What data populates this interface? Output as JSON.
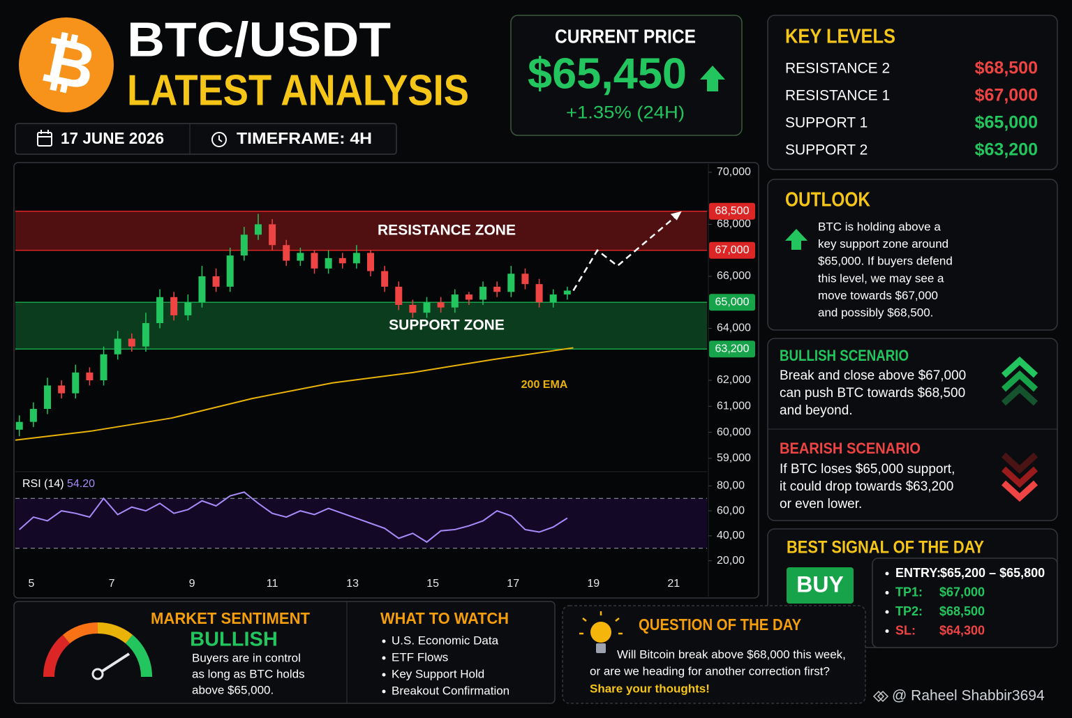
{
  "header": {
    "logo": "₿",
    "title": "BTC/USDT",
    "subtitle": "LATEST ANALYSIS",
    "date": "17 JUNE 2026",
    "timeframe": "TIMEFRAME: 4H"
  },
  "price": {
    "label": "CURRENT PRICE",
    "value": "$65,450",
    "change": "+1.35% (24H)"
  },
  "key_levels": {
    "title": "KEY LEVELS",
    "rows": [
      {
        "label": "RESISTANCE 2",
        "value": "$68,500",
        "color": "#ef4444"
      },
      {
        "label": "RESISTANCE 1",
        "value": "$67,000",
        "color": "#ef4444"
      },
      {
        "label": "SUPPORT 1",
        "value": "$65,000",
        "color": "#22c55e"
      },
      {
        "label": "SUPPORT 2",
        "value": "$63,200",
        "color": "#22c55e"
      }
    ]
  },
  "outlook": {
    "title": "OUTLOOK",
    "lines": [
      "BTC is holding above a",
      "key support zone around",
      "$65,000. If buyers defend",
      "this level, we may see a",
      "move towards $67,000",
      "and possibly $68,500."
    ]
  },
  "bullish": {
    "title": "BULLISH SCENARIO",
    "lines": [
      "Break and close above $67,000",
      "can push BTC towards $68,500",
      "and beyond."
    ]
  },
  "bearish": {
    "title": "BEARISH SCENARIO",
    "lines": [
      "If BTC loses $65,000 support,",
      "it could drop towards $63,200",
      "or even lower."
    ]
  },
  "signal": {
    "title": "BEST SIGNAL OF THE DAY",
    "action": "BUY",
    "items": [
      {
        "label": "ENTRY:",
        "value": "$65,200 – $65,800",
        "color": "#ffffff"
      },
      {
        "label": "TP1:",
        "value": "$67,000",
        "color": "#22c55e"
      },
      {
        "label": "TP2:",
        "value": "$68,500",
        "color": "#22c55e"
      },
      {
        "label": "SL:",
        "value": "$64,300",
        "color": "#ef4444"
      }
    ]
  },
  "sentiment": {
    "title": "MARKET SENTIMENT",
    "value": "BULLISH",
    "lines": [
      "Buyers are in control",
      "as long as BTC holds",
      "above $65,000."
    ]
  },
  "watch": {
    "title": "WHAT TO WATCH",
    "items": [
      "U.S. Economic Data",
      "ETF Flows",
      "Key Support Hold",
      "Breakout Confirmation"
    ]
  },
  "question": {
    "title": "QUESTION OF THE DAY",
    "lines": [
      "Will Bitcoin break above $68,000 this week,",
      "or are we heading for another correction first?"
    ],
    "cta": "Share your thoughts!"
  },
  "watermark": "@ Raheel Shabbir3694",
  "chart_data": {
    "type": "candlestick",
    "up_color": "#22c55e",
    "down_color": "#ef4444",
    "xlim": [
      4.6,
      21.83
    ],
    "xticks": [
      5,
      7,
      9,
      11,
      13,
      15,
      17,
      19,
      21
    ],
    "ylim": [
      58700,
      70400
    ],
    "yticks": [
      {
        "value": 70000,
        "label": "70,000"
      },
      {
        "value": 68000,
        "label": "68,000"
      },
      {
        "value": 66000,
        "label": "66,000"
      },
      {
        "value": 64000,
        "label": "64,000"
      },
      {
        "value": 62000,
        "label": "62,000"
      },
      {
        "value": 61000,
        "label": "61,000"
      },
      {
        "value": 60000,
        "label": "60,000"
      },
      {
        "value": 59000,
        "label": "59,000"
      }
    ],
    "levels": [
      {
        "value": 68500,
        "label": "68,500",
        "color": "#dc2626"
      },
      {
        "value": 67000,
        "label": "67,000",
        "color": "#dc2626"
      },
      {
        "value": 65000,
        "label": "65,000",
        "color": "#16a34a"
      },
      {
        "value": 63200,
        "label": "63,200",
        "color": "#16a34a"
      }
    ],
    "zones": [
      {
        "name": "RESISTANCE ZONE",
        "from": 67000,
        "to": 68500,
        "color": "#dc2626"
      },
      {
        "name": "SUPPORT ZONE",
        "from": 63200,
        "to": 65000,
        "color": "#16a34a"
      }
    ],
    "x": [
      4.7,
      5.05,
      5.4,
      5.75,
      6.1,
      6.45,
      6.8,
      7.15,
      7.5,
      7.85,
      8.2,
      8.55,
      8.9,
      9.25,
      9.6,
      9.95,
      10.3,
      10.65,
      11.0,
      11.35,
      11.7,
      12.05,
      12.4,
      12.75,
      13.1,
      13.45,
      13.8,
      14.15,
      14.5,
      14.85,
      15.2,
      15.55,
      15.9,
      16.25,
      16.6,
      16.95,
      17.3,
      17.65,
      18.0,
      18.35
    ],
    "open": [
      60100,
      60400,
      60900,
      61800,
      61500,
      62300,
      62000,
      63000,
      63600,
      63300,
      64200,
      65200,
      64500,
      65000,
      66000,
      65600,
      66800,
      67600,
      68000,
      67200,
      66600,
      66900,
      66300,
      66700,
      66500,
      66900,
      66200,
      65600,
      64900,
      64600,
      65000,
      64800,
      65300,
      65100,
      65600,
      65400,
      66100,
      65700,
      65000,
      65300
    ],
    "high": [
      60650,
      61150,
      62100,
      62000,
      62600,
      62500,
      63300,
      63900,
      63800,
      64600,
      65500,
      65400,
      65300,
      66400,
      66300,
      67100,
      67900,
      68400,
      68200,
      67400,
      67100,
      67000,
      67000,
      66900,
      67200,
      67000,
      66400,
      65800,
      65100,
      65200,
      65200,
      65500,
      65400,
      65800,
      65800,
      66400,
      66300,
      65900,
      65500,
      65600
    ],
    "low": [
      59850,
      60200,
      60700,
      61300,
      61300,
      61800,
      61800,
      62800,
      63100,
      63100,
      64000,
      64300,
      64300,
      64800,
      65400,
      65400,
      66600,
      67400,
      67000,
      66400,
      66400,
      66100,
      66100,
      66300,
      66300,
      66000,
      65400,
      64700,
      64400,
      64400,
      64600,
      64600,
      64900,
      64900,
      65200,
      65200,
      65500,
      64800,
      64800,
      65100
    ],
    "close": [
      60400,
      60900,
      61800,
      61500,
      62300,
      62000,
      63000,
      63600,
      63300,
      64200,
      65200,
      64500,
      65000,
      66000,
      65600,
      66800,
      67600,
      68000,
      67200,
      66600,
      66900,
      66300,
      66700,
      66500,
      66900,
      66200,
      65600,
      64900,
      64600,
      65000,
      64800,
      65300,
      65100,
      65600,
      65400,
      66100,
      65700,
      65000,
      65300,
      65450
    ],
    "ema": {
      "name": "200 EMA",
      "color": "#eab308",
      "x": [
        4.6,
        6.5,
        8.5,
        10.5,
        12.5,
        14.5,
        16.5,
        18.5
      ],
      "values": [
        59700,
        60050,
        60550,
        61300,
        61900,
        62300,
        62800,
        63250
      ]
    },
    "projection": {
      "x": [
        18.5,
        19.1,
        19.6,
        21.2
      ],
      "values": [
        65450,
        67000,
        66400,
        68500
      ]
    },
    "rsi": {
      "label": "RSI (14)",
      "value_label": "54.20",
      "color": "#a78bfa",
      "ylim": [
        12,
        88
      ],
      "yticks": [
        {
          "value": 80,
          "label": "80,00"
        },
        {
          "value": 60,
          "label": "60,00"
        },
        {
          "value": 40,
          "label": "40,00"
        },
        {
          "value": 20,
          "label": "20,00"
        }
      ],
      "levels": [
        70,
        30
      ],
      "values": [
        45,
        55,
        52,
        60,
        58,
        55,
        70,
        57,
        63,
        60,
        66,
        58,
        61,
        68,
        64,
        72,
        75,
        66,
        58,
        55,
        60,
        57,
        62,
        58,
        54,
        50,
        46,
        38,
        42,
        35,
        44,
        45,
        48,
        52,
        60,
        56,
        45,
        43,
        47,
        54.2
      ]
    }
  }
}
